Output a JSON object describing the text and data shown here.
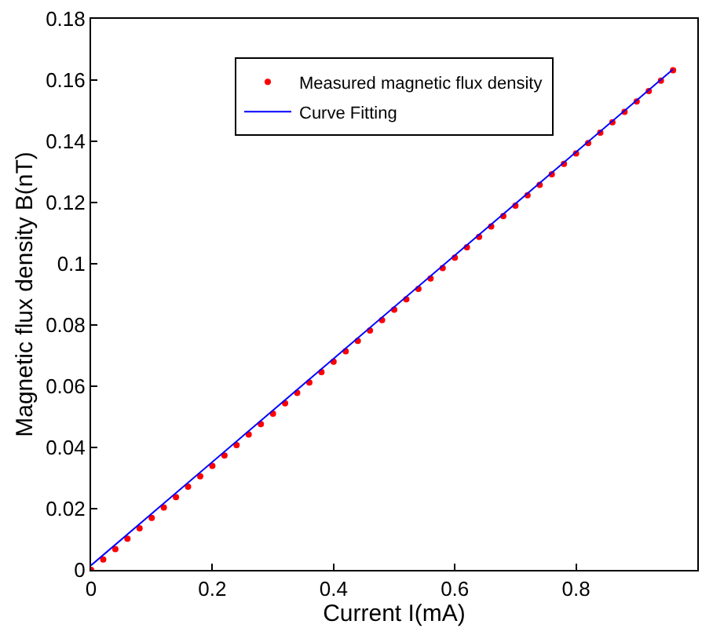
{
  "chart_data": {
    "type": "scatter",
    "xlabel": "Current I(mA)",
    "ylabel": "Magnetic flux density B(nT)",
    "xlim": [
      0,
      1
    ],
    "xticks": [
      0,
      0.2,
      0.4,
      0.6,
      0.8
    ],
    "ylim": [
      0,
      0.18
    ],
    "yticks": [
      0,
      0.02,
      0.04,
      0.06,
      0.08,
      0.1,
      0.12,
      0.14,
      0.16,
      0.18
    ],
    "legend": "top",
    "series": [
      {
        "name": "Measured magnetic flux density",
        "marker": "circle",
        "color": "#ff0000",
        "x": [
          0,
          0.02,
          0.04,
          0.06,
          0.08,
          0.1,
          0.12,
          0.14,
          0.16,
          0.18,
          0.2,
          0.22,
          0.24,
          0.26,
          0.28,
          0.3,
          0.32,
          0.34,
          0.36,
          0.38,
          0.4,
          0.42,
          0.44,
          0.46,
          0.48,
          0.5,
          0.52,
          0.54,
          0.56,
          0.58,
          0.6,
          0.62,
          0.64,
          0.66,
          0.68,
          0.7,
          0.72,
          0.74,
          0.76,
          0.78,
          0.8,
          0.82,
          0.84,
          0.86,
          0.88,
          0.9,
          0.92,
          0.94,
          0.96
        ],
        "values": [
          0,
          0.0034,
          0.0068,
          0.0102,
          0.0136,
          0.017,
          0.0204,
          0.0238,
          0.0272,
          0.0306,
          0.034,
          0.0374,
          0.0408,
          0.0442,
          0.0476,
          0.051,
          0.0544,
          0.0578,
          0.0612,
          0.0646,
          0.068,
          0.0714,
          0.0748,
          0.0782,
          0.0816,
          0.085,
          0.0884,
          0.0918,
          0.0952,
          0.0986,
          0.102,
          0.1054,
          0.1088,
          0.1122,
          0.1156,
          0.119,
          0.1224,
          0.1258,
          0.1292,
          0.1326,
          0.136,
          0.1394,
          0.1428,
          0.1462,
          0.1496,
          0.153,
          0.1564,
          0.1598,
          0.1632
        ]
      },
      {
        "name": "Curve Fitting",
        "type": "line",
        "color": "#0000ff",
        "line_style": "solid",
        "x": [
          0,
          0.96
        ],
        "values": [
          0.0015,
          0.1635
        ]
      }
    ]
  }
}
